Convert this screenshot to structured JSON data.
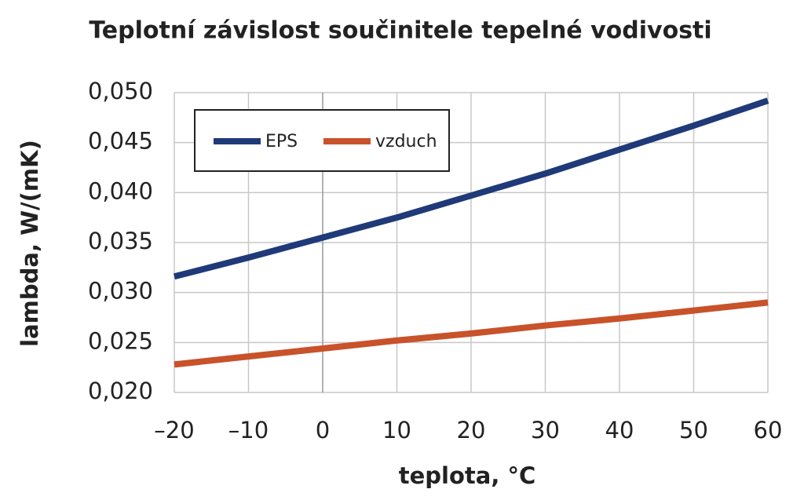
{
  "chart_data": {
    "type": "line",
    "title": "Teplotní  závislost součinitele tepelné vodivosti",
    "xlabel": "teplota, °C",
    "ylabel": "lambda, W/(mK)",
    "x": [
      -20,
      -10,
      0,
      10,
      20,
      30,
      40,
      50,
      60
    ],
    "series": [
      {
        "name": "EPS",
        "color": "#1f3a78",
        "values": [
          0.0316,
          0.0335,
          0.0355,
          0.0375,
          0.0397,
          0.0419,
          0.0443,
          0.0467,
          0.0492
        ]
      },
      {
        "name": "vzduch",
        "color": "#c8522a",
        "values": [
          0.0228,
          0.0236,
          0.0244,
          0.0252,
          0.0259,
          0.0267,
          0.0274,
          0.0282,
          0.029
        ]
      }
    ],
    "xlim": [
      -20,
      60
    ],
    "xticks": [
      {
        "value": -20,
        "label": "–20"
      },
      {
        "value": -10,
        "label": "–10"
      },
      0,
      10,
      20,
      30,
      40,
      50,
      60
    ],
    "ylim": [
      0.02,
      0.05
    ],
    "yticks": [
      {
        "value": 0.02,
        "label": "0,020"
      },
      {
        "value": 0.025,
        "label": "0,025"
      },
      {
        "value": 0.03,
        "label": "0,030"
      },
      {
        "value": 0.035,
        "label": "0,035"
      },
      {
        "value": 0.04,
        "label": "0,040"
      },
      {
        "value": 0.045,
        "label": "0,045"
      },
      {
        "value": 0.05,
        "label": "0,050"
      }
    ],
    "grid": true,
    "legend": "upper left"
  }
}
